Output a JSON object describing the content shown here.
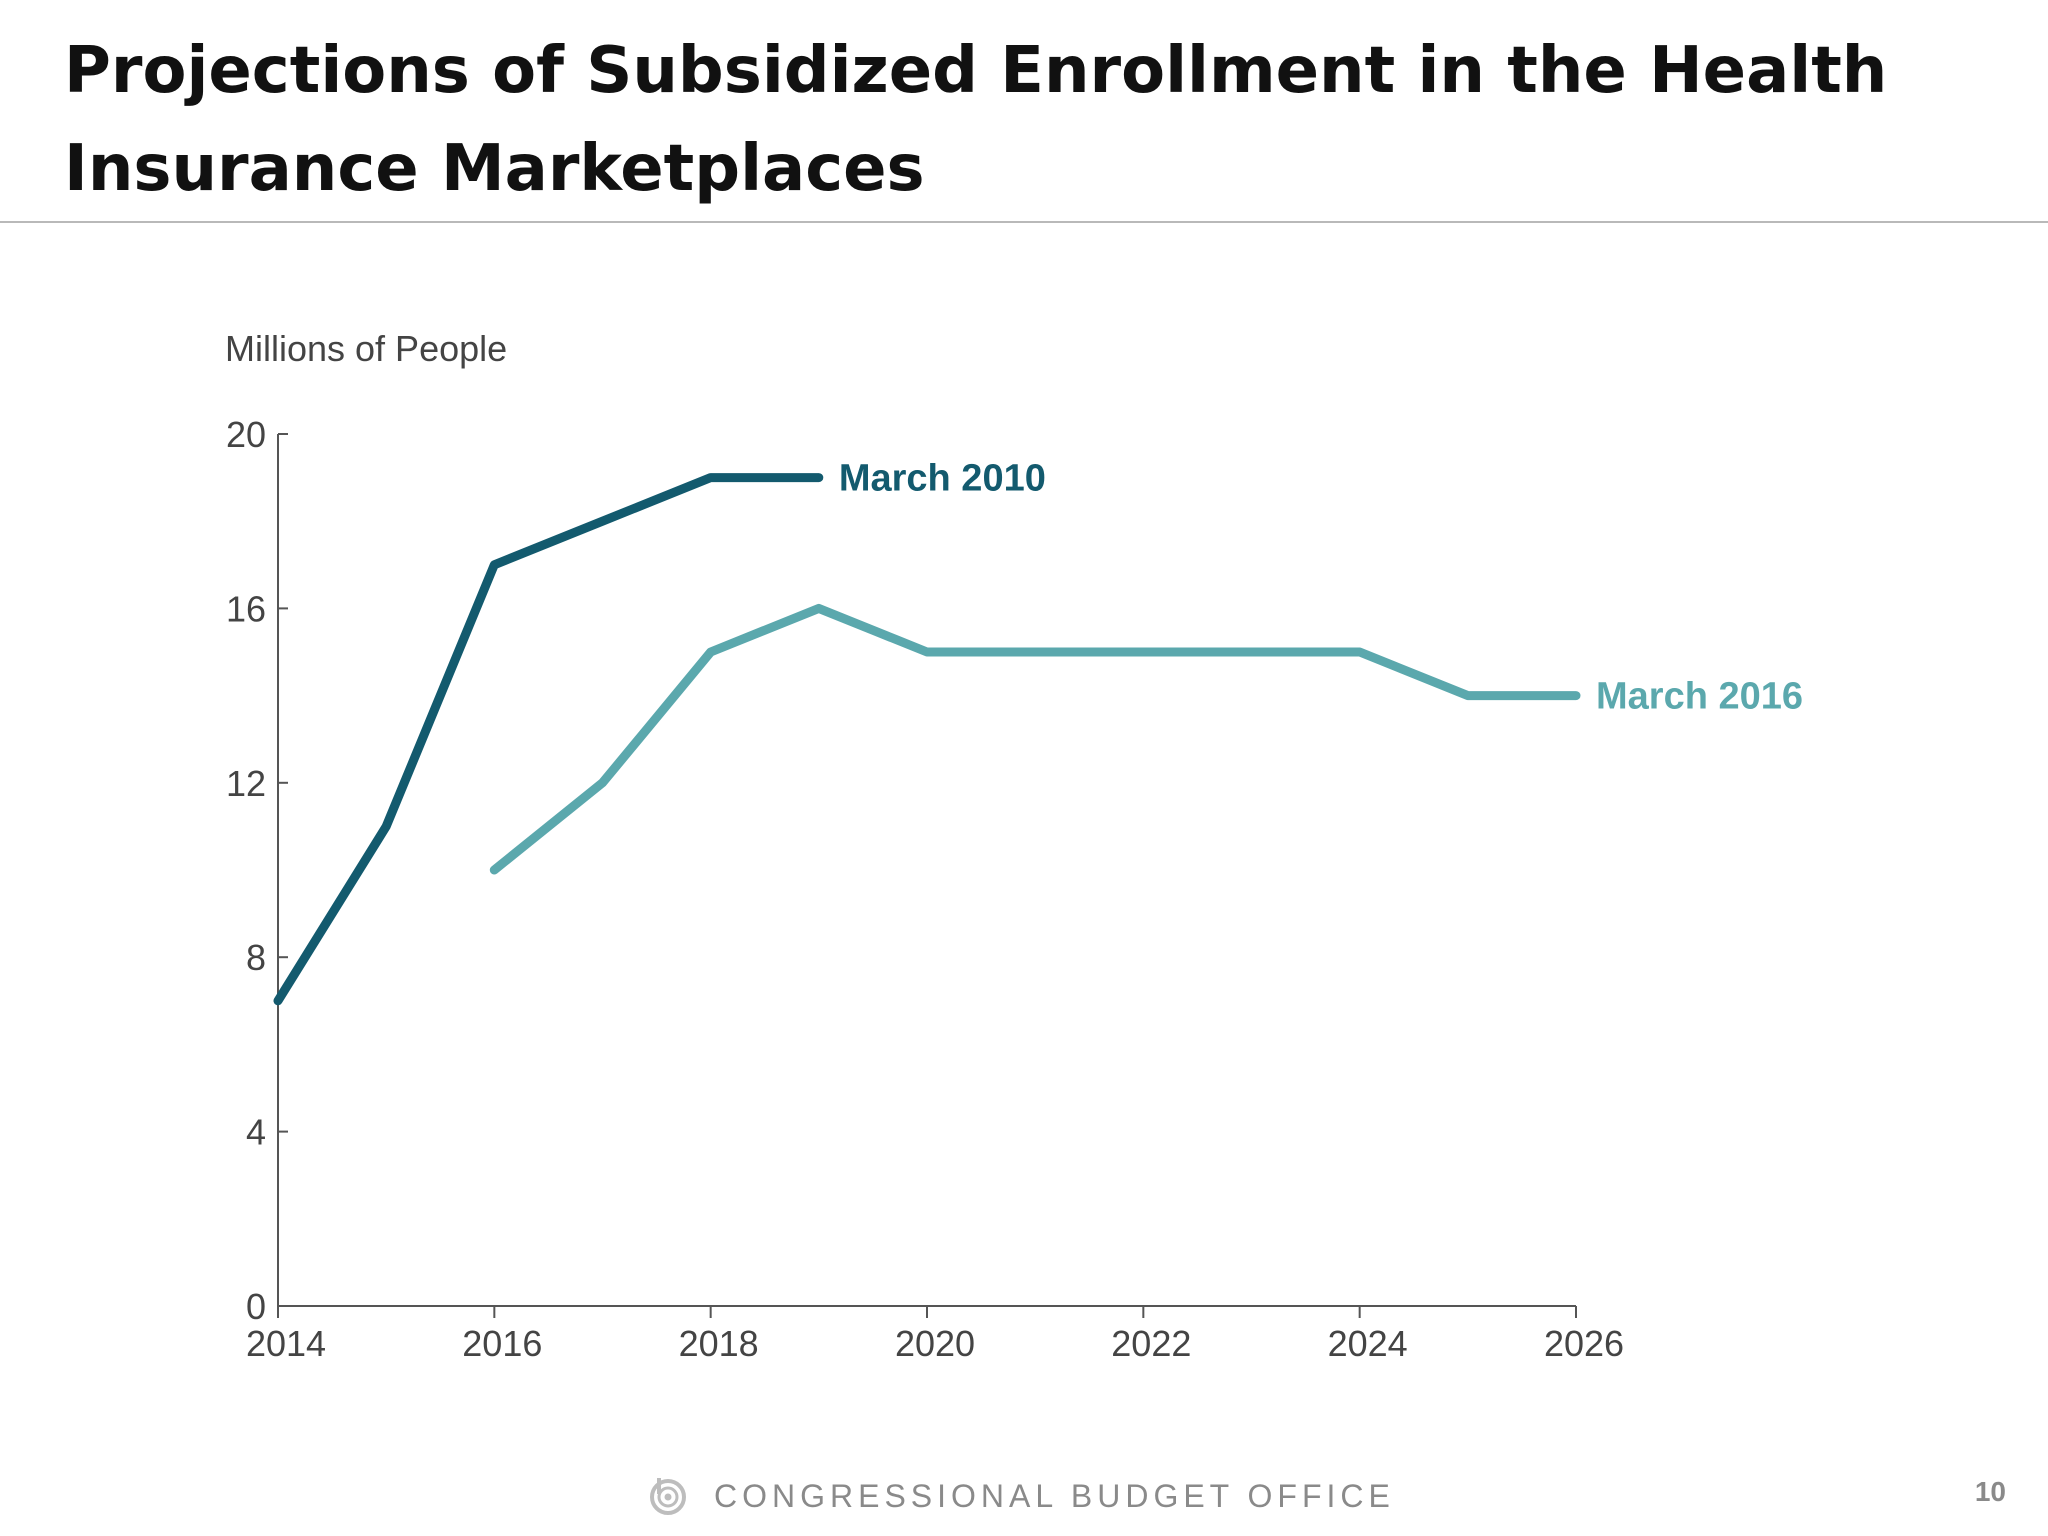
{
  "slide": {
    "title": "Projections of Subsidized Enrollment in the Health Insurance Marketplaces",
    "footer_org": "CONGRESSIONAL BUDGET OFFICE",
    "page_number": "10",
    "logo_icon": "cbo-logo-icon"
  },
  "chart_data": {
    "type": "line",
    "title": "",
    "xlabel": "",
    "ylabel": "Millions of People",
    "xlim": [
      2014,
      2026
    ],
    "ylim": [
      0,
      20
    ],
    "x_ticks": [
      2014,
      2016,
      2018,
      2020,
      2022,
      2024,
      2026
    ],
    "y_ticks": [
      0,
      4,
      8,
      12,
      16,
      20
    ],
    "grid": false,
    "legend": "direct labels at line ends",
    "series": [
      {
        "name": "March 2010",
        "color": "#135a6e",
        "x": [
          2014,
          2015,
          2016,
          2017,
          2018,
          2019
        ],
        "values": [
          7,
          11,
          17,
          18,
          19,
          19
        ]
      },
      {
        "name": "March 2016",
        "color": "#5ba8ad",
        "x": [
          2016,
          2017,
          2018,
          2019,
          2020,
          2021,
          2022,
          2023,
          2024,
          2025,
          2026
        ],
        "values": [
          10,
          12,
          15,
          16,
          15,
          15,
          15,
          15,
          15,
          14,
          14
        ]
      }
    ]
  }
}
